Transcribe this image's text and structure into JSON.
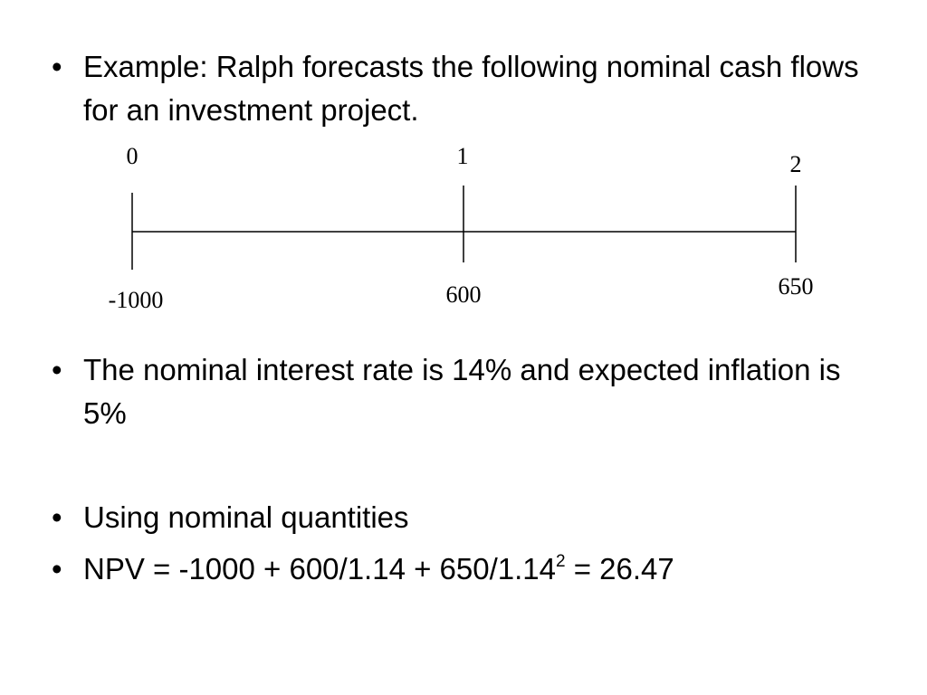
{
  "bullets": [
    {
      "marker": "•",
      "text": "Example: Ralph forecasts the following nominal cash flows for an investment project."
    },
    {
      "marker": "•",
      "text": "The nominal interest rate is 14% and expected inflation is 5%"
    },
    {
      "marker": "•",
      "text": "Using nominal quantities"
    },
    {
      "marker": "•",
      "text_before_sup": "NPV = -1000 + 600/1.14 + 650/1.14",
      "sup": "2",
      "text_after_sup": " = 26.47"
    }
  ],
  "timeline": {
    "periods": [
      "0",
      "1",
      "2"
    ],
    "cash_flows": [
      "-1000",
      "600",
      "650"
    ]
  }
}
